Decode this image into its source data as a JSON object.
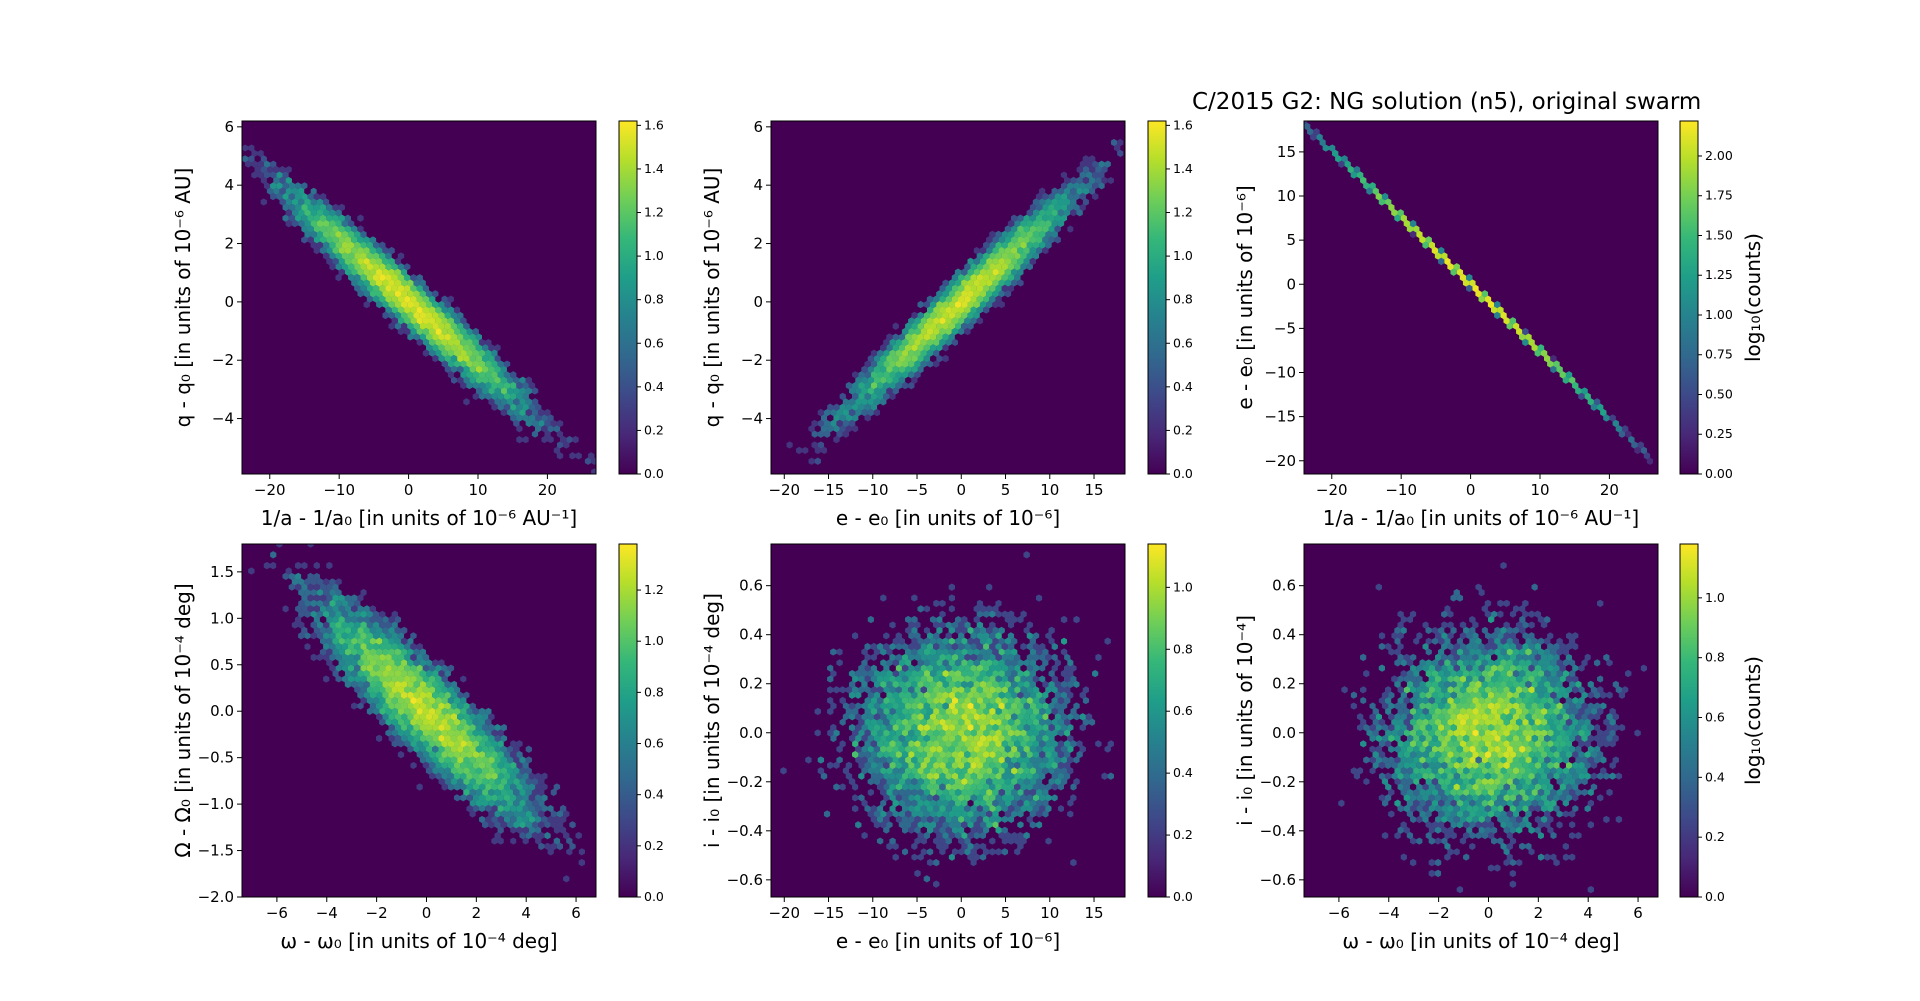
{
  "figure": {
    "title": "C/2015 G2: NG solution (n5),  original swarm"
  },
  "colormap": {
    "name": "viridis",
    "stops": [
      "#440154",
      "#482878",
      "#3e4989",
      "#31688e",
      "#26828e",
      "#1f9e89",
      "#35b779",
      "#6ece58",
      "#b5de2b",
      "#fde725"
    ],
    "background": "#440154"
  },
  "chart_data": [
    {
      "type": "hexbin",
      "id": "p1",
      "xlabel": "1/a - 1/a₀ [in units of 10⁻⁶ AU⁻¹]",
      "ylabel": "q - q₀ [in units of 10⁻⁶ AU]",
      "xlim": [
        -24,
        27
      ],
      "ylim": [
        -5.9,
        6.2
      ],
      "xticks": [
        -20,
        -10,
        0,
        10,
        20
      ],
      "yticks": [
        -4,
        -2,
        0,
        2,
        4,
        6
      ],
      "xtick_labels": [
        "−20",
        "−10",
        "0",
        "10",
        "20"
      ],
      "ytick_labels": [
        "−4",
        "−2",
        "0",
        "2",
        "4",
        "6"
      ],
      "distribution": {
        "kind": "correlated",
        "sx": 8.5,
        "sy": 1.85,
        "rho": -0.97,
        "n": 9000
      },
      "colorbar": {
        "range": [
          0,
          1.62
        ],
        "ticks": [
          0,
          0.2,
          0.4,
          0.6,
          0.8,
          1.0,
          1.2,
          1.4,
          1.6
        ],
        "tick_labels": [
          "0.0",
          "0.2",
          "0.4",
          "0.6",
          "0.8",
          "1.0",
          "1.2",
          "1.4",
          "1.6"
        ],
        "label": ""
      }
    },
    {
      "type": "hexbin",
      "id": "p2",
      "xlabel": "e - e₀ [in units of 10⁻⁶]",
      "ylabel": "q - q₀ [in units of 10⁻⁶ AU]",
      "xlim": [
        -21.5,
        18.5
      ],
      "ylim": [
        -5.9,
        6.2
      ],
      "xticks": [
        -20,
        -15,
        -10,
        -5,
        0,
        5,
        10,
        15
      ],
      "yticks": [
        -4,
        -2,
        0,
        2,
        4,
        6
      ],
      "xtick_labels": [
        "−20",
        "−15",
        "−10",
        "−5",
        "0",
        "5",
        "10",
        "15"
      ],
      "ytick_labels": [
        "−4",
        "−2",
        "0",
        "2",
        "4",
        "6"
      ],
      "distribution": {
        "kind": "correlated",
        "sx": 6.3,
        "sy": 1.85,
        "rho": 0.97,
        "n": 9000
      },
      "colorbar": {
        "range": [
          0,
          1.62
        ],
        "ticks": [
          0,
          0.2,
          0.4,
          0.6,
          0.8,
          1.0,
          1.2,
          1.4,
          1.6
        ],
        "tick_labels": [
          "0.0",
          "0.2",
          "0.4",
          "0.6",
          "0.8",
          "1.0",
          "1.2",
          "1.4",
          "1.6"
        ],
        "label": ""
      }
    },
    {
      "type": "hexbin",
      "id": "p3",
      "xlabel": "1/a - 1/a₀ [in units of 10⁻⁶ AU⁻¹]",
      "ylabel": "e - e₀ [in units of 10⁻⁶]",
      "xlim": [
        -24,
        27
      ],
      "ylim": [
        -21.5,
        18.5
      ],
      "xticks": [
        -20,
        -10,
        0,
        10,
        20
      ],
      "yticks": [
        -20,
        -15,
        -10,
        -5,
        0,
        5,
        10,
        15
      ],
      "xtick_labels": [
        "−20",
        "−10",
        "0",
        "10",
        "20"
      ],
      "ytick_labels": [
        "−20",
        "−15",
        "−10",
        "−5",
        "0",
        "5",
        "10",
        "15"
      ],
      "distribution": {
        "kind": "line",
        "slope": -0.76,
        "sx": 8.5,
        "n": 9000
      },
      "colorbar": {
        "range": [
          0,
          2.22
        ],
        "ticks": [
          0,
          0.25,
          0.5,
          0.75,
          1.0,
          1.25,
          1.5,
          1.75,
          2.0
        ],
        "tick_labels": [
          "0.00",
          "0.25",
          "0.50",
          "0.75",
          "1.00",
          "1.25",
          "1.50",
          "1.75",
          "2.00"
        ],
        "label": "log₁₀(counts)"
      }
    },
    {
      "type": "hexbin",
      "id": "p4",
      "xlabel": "ω - ω₀ [in units of 10⁻⁴ deg]",
      "ylabel": "Ω - Ω₀ [in units of 10⁻⁴ deg]",
      "xlim": [
        -7.4,
        6.8
      ],
      "ylim": [
        -2.0,
        1.8
      ],
      "xticks": [
        -6,
        -4,
        -2,
        0,
        2,
        4,
        6
      ],
      "yticks": [
        -2.0,
        -1.5,
        -1.0,
        -0.5,
        0.0,
        0.5,
        1.0,
        1.5
      ],
      "xtick_labels": [
        "−6",
        "−4",
        "−2",
        "0",
        "2",
        "4",
        "6"
      ],
      "ytick_labels": [
        "−2.0",
        "−1.5",
        "−1.0",
        "−0.5",
        "0.0",
        "0.5",
        "1.0",
        "1.5"
      ],
      "distribution": {
        "kind": "correlated",
        "sx": 2.2,
        "sy": 0.6,
        "rho": -0.9,
        "n": 9000
      },
      "colorbar": {
        "range": [
          0,
          1.38
        ],
        "ticks": [
          0,
          0.2,
          0.4,
          0.6,
          0.8,
          1.0,
          1.2
        ],
        "tick_labels": [
          "0.0",
          "0.2",
          "0.4",
          "0.6",
          "0.8",
          "1.0",
          "1.2"
        ],
        "label": ""
      }
    },
    {
      "type": "hexbin",
      "id": "p5",
      "xlabel": "e - e₀ [in units of 10⁻⁶]",
      "ylabel": "i - i₀ [in units of 10⁻⁴ deg]",
      "xlim": [
        -21.5,
        18.5
      ],
      "ylim": [
        -0.67,
        0.77
      ],
      "xticks": [
        -20,
        -15,
        -10,
        -5,
        0,
        5,
        10,
        15
      ],
      "yticks": [
        -0.6,
        -0.4,
        -0.2,
        0.0,
        0.2,
        0.4,
        0.6
      ],
      "xtick_labels": [
        "−20",
        "−15",
        "−10",
        "−5",
        "0",
        "5",
        "10",
        "15"
      ],
      "ytick_labels": [
        "−0.6",
        "−0.4",
        "−0.2",
        "0.0",
        "0.2",
        "0.4",
        "0.6"
      ],
      "distribution": {
        "kind": "correlated",
        "sx": 6.3,
        "sy": 0.22,
        "rho": 0.0,
        "n": 9000
      },
      "colorbar": {
        "range": [
          0,
          1.14
        ],
        "ticks": [
          0,
          0.2,
          0.4,
          0.6,
          0.8,
          1.0
        ],
        "tick_labels": [
          "0.0",
          "0.2",
          "0.4",
          "0.6",
          "0.8",
          "1.0"
        ],
        "label": ""
      }
    },
    {
      "type": "hexbin",
      "id": "p6",
      "xlabel": "ω - ω₀ [in units of 10⁻⁴ deg]",
      "ylabel": "i - i₀ [in units of 10⁻⁴]",
      "xlim": [
        -7.4,
        6.8
      ],
      "ylim": [
        -0.67,
        0.77
      ],
      "xticks": [
        -6,
        -4,
        -2,
        0,
        2,
        4,
        6
      ],
      "yticks": [
        -0.6,
        -0.4,
        -0.2,
        0.0,
        0.2,
        0.4,
        0.6
      ],
      "xtick_labels": [
        "−6",
        "−4",
        "−2",
        "0",
        "2",
        "4",
        "6"
      ],
      "ytick_labels": [
        "−0.6",
        "−0.4",
        "−0.2",
        "0.0",
        "0.2",
        "0.4",
        "0.6"
      ],
      "distribution": {
        "kind": "correlated",
        "sx": 2.2,
        "sy": 0.22,
        "rho": 0.0,
        "n": 9000
      },
      "colorbar": {
        "range": [
          0,
          1.18
        ],
        "ticks": [
          0,
          0.2,
          0.4,
          0.6,
          0.8,
          1.0
        ],
        "tick_labels": [
          "0.0",
          "0.2",
          "0.4",
          "0.6",
          "0.8",
          "1.0"
        ],
        "label": "log₁₀(counts)"
      }
    }
  ]
}
